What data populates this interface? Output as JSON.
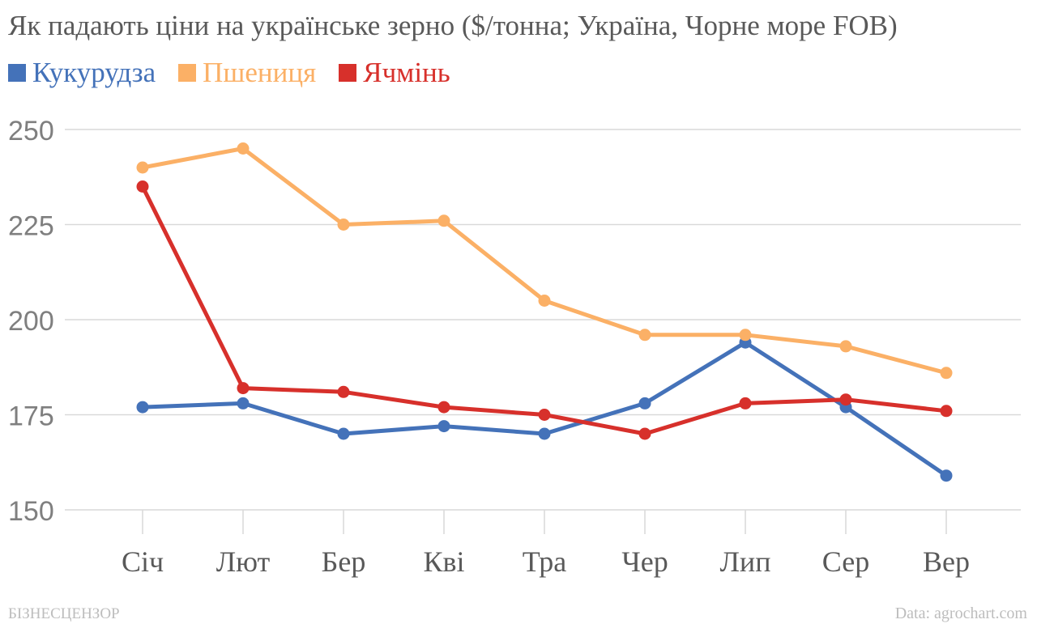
{
  "chart_data": {
    "type": "line",
    "title": "Як падають ціни на українське зерно ($/тонна; Україна, Чорне море FOB)",
    "categories": [
      "Січ",
      "Лют",
      "Бер",
      "Кві",
      "Тра",
      "Чер",
      "Лип",
      "Сер",
      "Вер"
    ],
    "series": [
      {
        "name": "Кукурудза",
        "color": "#4472b9",
        "values": [
          177,
          178,
          170,
          172,
          170,
          178,
          194,
          177,
          159
        ]
      },
      {
        "name": "Пшениця",
        "color": "#fbb066",
        "values": [
          240,
          245,
          225,
          226,
          205,
          196,
          196,
          193,
          186
        ]
      },
      {
        "name": "Ячмінь",
        "color": "#d7302b",
        "values": [
          235,
          182,
          181,
          177,
          175,
          170,
          178,
          179,
          176
        ]
      }
    ],
    "yticks": [
      150,
      175,
      200,
      225,
      250
    ],
    "ylim": [
      150,
      250
    ],
    "grid": true,
    "legend_position": "top-left"
  },
  "footer": {
    "source": "Data: agrochart.com",
    "brand": "БІЗНЕСЦЕНЗОР"
  }
}
